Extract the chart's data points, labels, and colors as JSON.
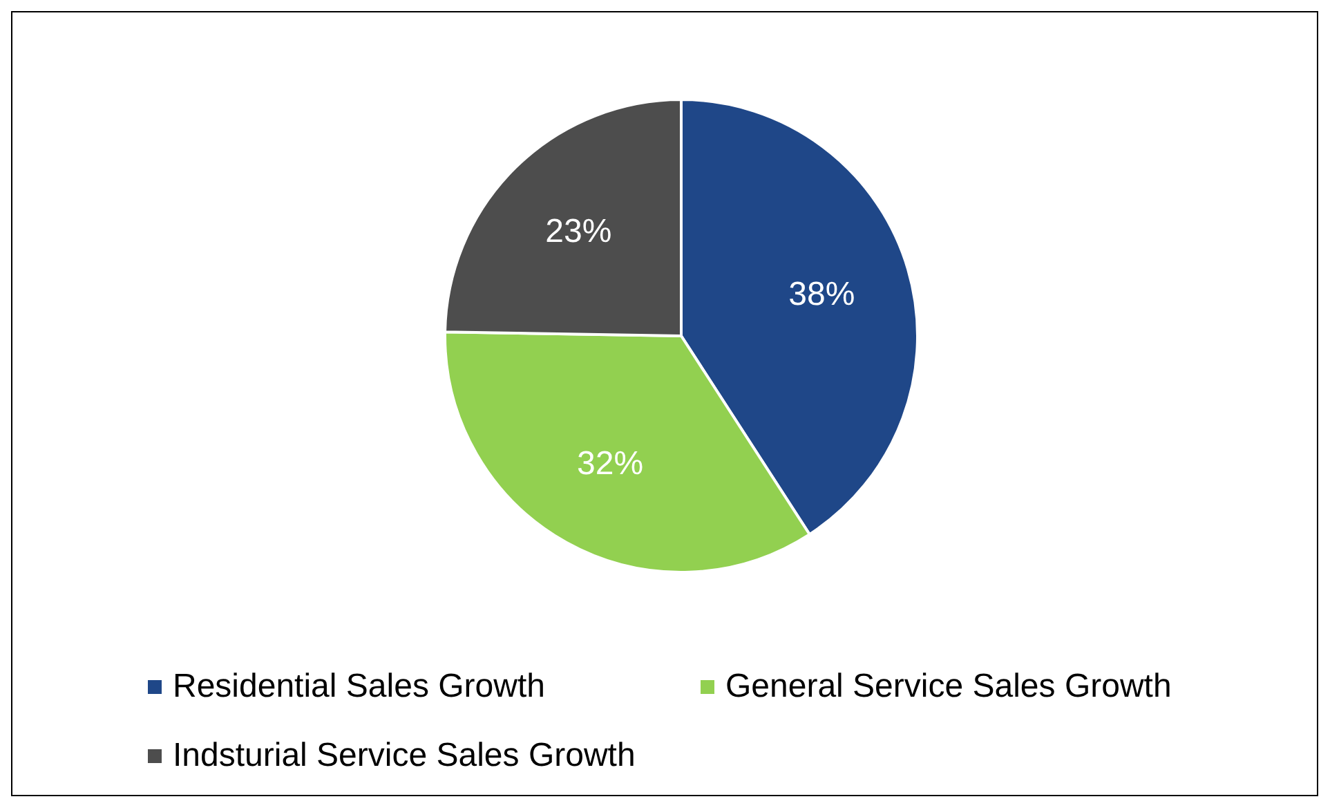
{
  "chart_data": {
    "type": "pie",
    "categories": [
      "Residential Sales Growth",
      "General Service Sales Growth",
      "Indsturial Service Sales Growth"
    ],
    "values": [
      38,
      32,
      23
    ],
    "colors": [
      "#1f4788",
      "#92d050",
      "#4d4d4d"
    ],
    "value_labels": [
      "38%",
      "32%",
      "23%"
    ],
    "legend": "bottom"
  }
}
